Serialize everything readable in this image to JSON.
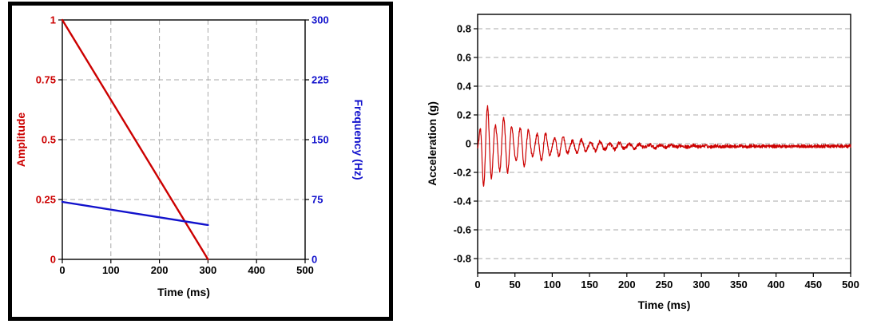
{
  "page": {
    "background": "#ffffff"
  },
  "chart_data": [
    {
      "id": "chart-left",
      "name": "sweep-profile-chart",
      "type": "line",
      "title": "",
      "xlabel": "Time (ms)",
      "xlim": [
        0,
        500
      ],
      "xticks": [
        0,
        100,
        200,
        300,
        400,
        500
      ],
      "xtick_labels": [
        "0",
        "100",
        "200",
        "300",
        "400",
        "500"
      ],
      "grid_x": [
        100,
        200,
        300,
        400
      ],
      "grid_on": true,
      "legend": "none",
      "y_left": {
        "label": "Amplitude",
        "color": "#cc0000",
        "lim": [
          0,
          1
        ],
        "ticks": [
          0,
          0.25,
          0.5,
          0.75,
          1
        ],
        "tick_labels": [
          "0",
          "0.25",
          "0.5",
          "0.75",
          "1"
        ],
        "grid": [
          0.25,
          0.5,
          0.75
        ]
      },
      "y_right": {
        "label": "Frequency (Hz)",
        "color": "#1212cc",
        "lim": [
          0,
          300
        ],
        "ticks": [
          0,
          75,
          150,
          225,
          300
        ],
        "tick_labels": [
          "0",
          "75",
          "150",
          "225",
          "300"
        ]
      },
      "series": [
        {
          "name": "amplitude-ramp",
          "axis": "left",
          "color": "#cc0000",
          "width": 2.4,
          "points": [
            [
              0,
              1
            ],
            [
              300,
              0
            ]
          ]
        },
        {
          "name": "frequency-sweep",
          "axis": "right",
          "color": "#1212cc",
          "width": 2.4,
          "points": [
            [
              0,
              72
            ],
            [
              300,
              43
            ]
          ]
        }
      ]
    },
    {
      "id": "chart-right",
      "name": "acceleration-chart",
      "type": "line",
      "title": "",
      "xlabel": "Time (ms)",
      "xlim": [
        0,
        500
      ],
      "xticks": [
        0,
        50,
        100,
        150,
        200,
        250,
        300,
        350,
        400,
        450,
        500
      ],
      "xtick_labels": [
        "0",
        "50",
        "100",
        "150",
        "200",
        "250",
        "300",
        "350",
        "400",
        "450",
        "500"
      ],
      "grid_x": [],
      "grid_on": true,
      "legend": "none",
      "y_left": {
        "label": "Acceleration (g)",
        "color": "#000000",
        "lim": [
          -0.9,
          0.9
        ],
        "ticks": [
          -0.8,
          -0.6,
          -0.4,
          -0.2,
          0,
          0.2,
          0.4,
          0.6,
          0.8
        ],
        "tick_labels": [
          "-0.8",
          "-0.6",
          "-0.4",
          "-0.2",
          "0",
          "0.2",
          "0.4",
          "0.6",
          "0.8"
        ],
        "grid": [
          -0.8,
          -0.6,
          -0.4,
          -0.2,
          0,
          0.2,
          0.4,
          0.6,
          0.8
        ]
      },
      "series": [
        {
          "name": "acceleration-response",
          "axis": "left",
          "color": "#cc0000",
          "width": 1.2,
          "signal": {
            "kind": "decaying-oscillation",
            "peak_g": 0.33,
            "freq_hz_start": 95,
            "freq_hz_end": 45,
            "decay_ms": 70,
            "beat_hz": 20,
            "noise_g": 0.012,
            "baseline_g": -0.018,
            "duration_ms": 500,
            "samples": 1500
          }
        }
      ]
    }
  ]
}
